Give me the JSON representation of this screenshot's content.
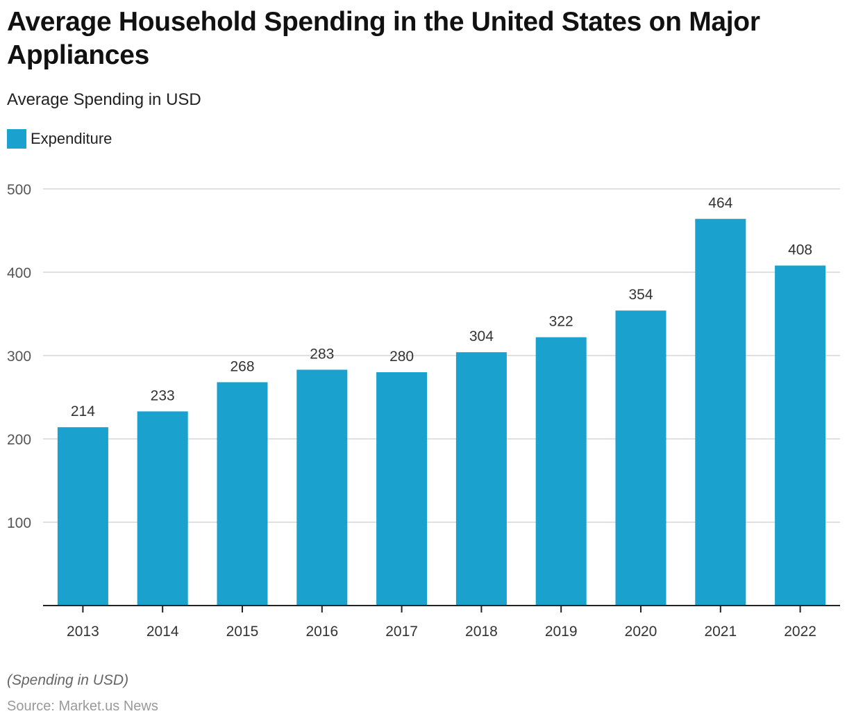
{
  "header": {
    "title": "Average Household Spending in the United States on Major Appliances",
    "subtitle": "Average Spending in USD"
  },
  "legend": [
    {
      "label": "Expenditure",
      "color": "#1aa1cd"
    }
  ],
  "footer": {
    "note": "(Spending in USD)",
    "source": "Source: Market.us News"
  },
  "chart_data": {
    "type": "bar",
    "title": "Average Household Spending in the United States on Major Appliances",
    "subtitle": "Average Spending in USD",
    "xlabel": "",
    "ylabel": "Average Spending in USD",
    "categories": [
      "2013",
      "2014",
      "2015",
      "2016",
      "2017",
      "2018",
      "2019",
      "2020",
      "2021",
      "2022"
    ],
    "series": [
      {
        "name": "Expenditure",
        "color": "#1aa1cd",
        "values": [
          214,
          233,
          268,
          283,
          280,
          304,
          322,
          354,
          464,
          408
        ]
      }
    ],
    "ylim": [
      0,
      500
    ],
    "yticks": [
      100,
      200,
      300,
      400,
      500
    ],
    "grid": true,
    "legend_position": "top-left",
    "data_labels": true
  }
}
